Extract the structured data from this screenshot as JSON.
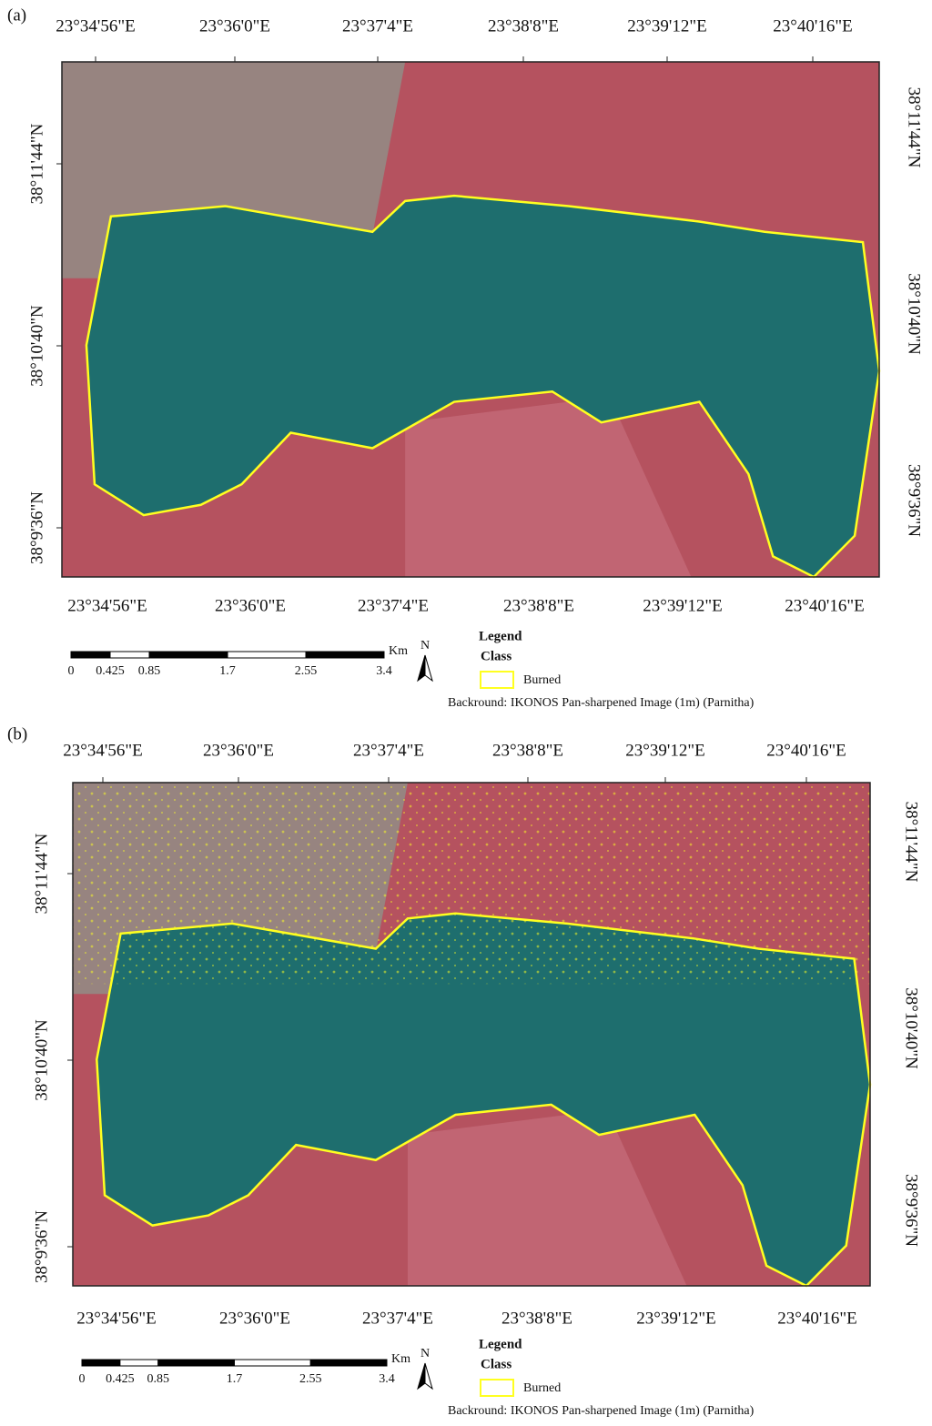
{
  "panels": [
    {
      "label": "(a)",
      "lon_labels": [
        "23°34'56\"E",
        "23°36'0\"E",
        "23°37'4\"E",
        "23°38'8\"E",
        "23°39'12\"E",
        "23°40'16\"E"
      ],
      "lat_labels": [
        "38°11'44\"N",
        "38°10'40\"N",
        "38°9'36\"N"
      ],
      "scale": {
        "ticks": [
          "0",
          "0.425",
          "0.85",
          "1.7",
          "2.55",
          "3.4"
        ],
        "unit": "Km"
      },
      "north": "N",
      "legend": {
        "title": "Legend",
        "subtitle": "Class",
        "items": [
          "Burned"
        ],
        "background": "Backround: IKONOS Pan-sharpened Image (1m) (Parnitha)"
      }
    },
    {
      "label": "(b)",
      "lon_labels": [
        "23°34'56\"E",
        "23°36'0\"E",
        "23°37'4\"E",
        "23°38'8\"E",
        "23°39'12\"E",
        "23°40'16\"E"
      ],
      "lat_labels": [
        "38°11'44\"N",
        "38°10'40\"N",
        "38°9'36\"N"
      ],
      "scale": {
        "ticks": [
          "0",
          "0.425",
          "0.85",
          "1.7",
          "2.55",
          "3.4"
        ],
        "unit": "Km"
      },
      "north": "N",
      "legend": {
        "title": "Legend",
        "subtitle": "Class",
        "items": [
          "Burned"
        ],
        "background": "Backround: IKONOS Pan-sharpened Image (1m) (Parnitha)"
      }
    }
  ]
}
